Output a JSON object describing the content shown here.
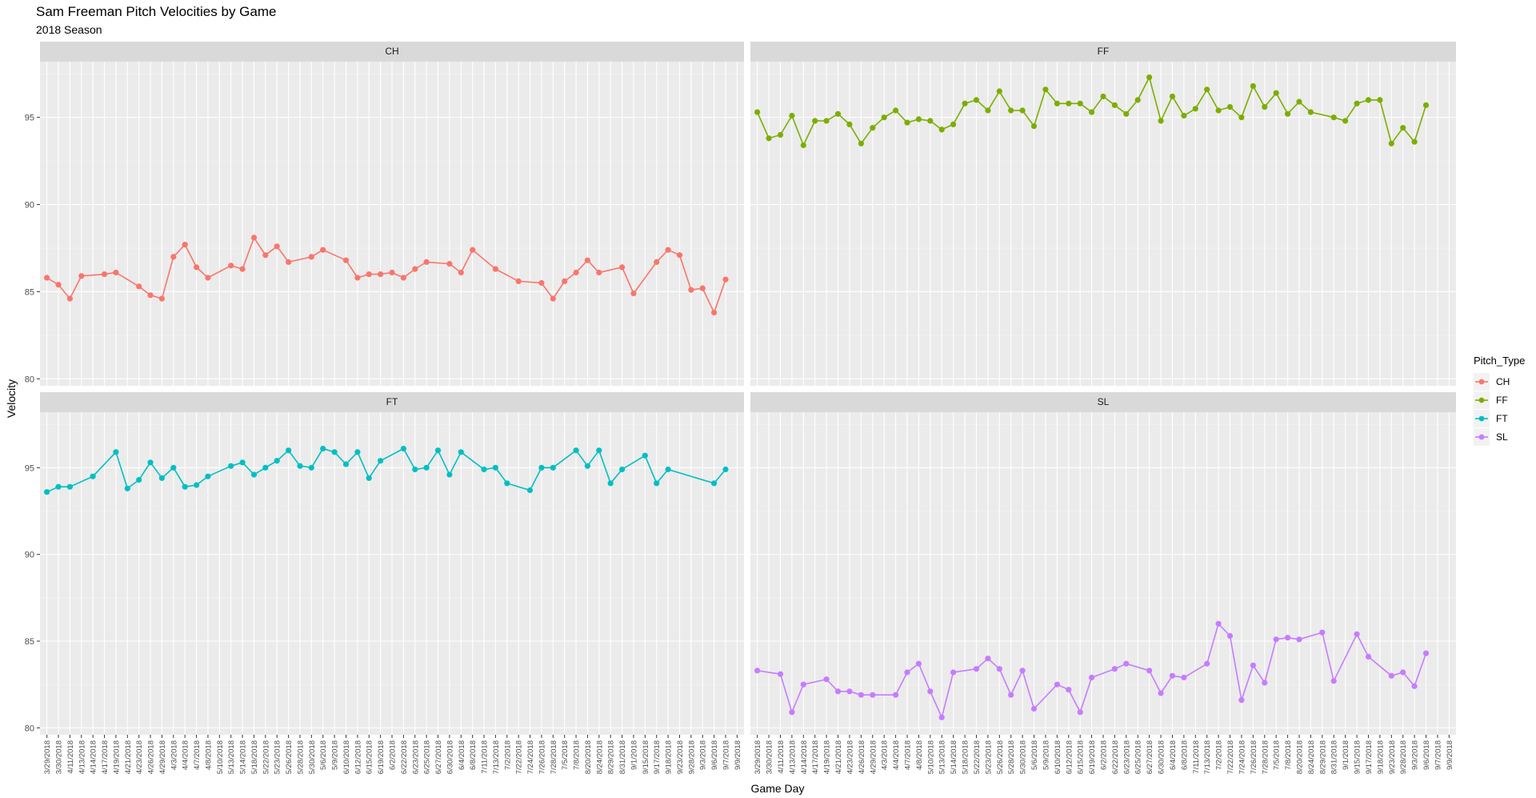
{
  "chart_data": {
    "type": "line",
    "title": "Sam Freeman Pitch Velocities by Game",
    "subtitle": "2018 Season",
    "xlabel": "Game Day",
    "ylabel": "Velocity",
    "ylim": [
      79.6,
      98.2
    ],
    "yticks": [
      80,
      85,
      90,
      95
    ],
    "grid": true,
    "legend": {
      "title": "Pitch_Type",
      "position": "right"
    },
    "x": [
      "3/29/2018",
      "3/30/2018",
      "4/11/2018",
      "4/13/2018",
      "4/14/2018",
      "4/17/2018",
      "4/19/2018",
      "4/21/2018",
      "4/23/2018",
      "4/26/2018",
      "4/29/2018",
      "4/3/2018",
      "4/4/2018",
      "4/7/2018",
      "4/8/2018",
      "5/10/2018",
      "5/13/2018",
      "5/14/2018",
      "5/18/2018",
      "5/22/2018",
      "5/23/2018",
      "5/26/2018",
      "5/28/2018",
      "5/30/2018",
      "5/6/2018",
      "5/9/2018",
      "6/10/2018",
      "6/12/2018",
      "6/15/2018",
      "6/19/2018",
      "6/2/2018",
      "6/22/2018",
      "6/23/2018",
      "6/25/2018",
      "6/27/2018",
      "6/30/2018",
      "6/4/2018",
      "6/8/2018",
      "7/11/2018",
      "7/13/2018",
      "7/2/2018",
      "7/22/2018",
      "7/24/2018",
      "7/26/2018",
      "7/28/2018",
      "7/5/2018",
      "7/8/2018",
      "8/20/2018",
      "8/24/2018",
      "8/29/2018",
      "8/31/2018",
      "9/1/2018",
      "9/15/2018",
      "9/17/2018",
      "9/18/2018",
      "9/23/2018",
      "9/28/2018",
      "9/3/2018",
      "9/6/2018",
      "9/7/2018",
      "9/9/2018"
    ],
    "series": [
      {
        "name": "CH",
        "color": "#F8766D",
        "panel": "CH",
        "values": [
          85.8,
          85.4,
          84.6,
          85.9,
          null,
          86.0,
          86.1,
          null,
          85.3,
          84.8,
          84.6,
          87.0,
          87.7,
          86.4,
          85.8,
          null,
          86.5,
          86.3,
          88.1,
          87.1,
          87.6,
          86.7,
          null,
          87.0,
          87.4,
          null,
          86.8,
          85.8,
          86.0,
          86.0,
          86.1,
          85.8,
          86.3,
          86.7,
          null,
          86.6,
          86.1,
          87.4,
          null,
          86.3,
          null,
          85.6,
          null,
          85.5,
          84.6,
          85.6,
          86.1,
          86.8,
          86.1,
          null,
          86.4,
          84.9,
          null,
          86.7,
          87.4,
          87.1,
          85.1,
          85.2,
          83.8,
          85.7,
          null
        ]
      },
      {
        "name": "FF",
        "color": "#7CAE00",
        "panel": "FF",
        "values": [
          95.3,
          93.8,
          94.0,
          95.1,
          93.4,
          94.8,
          94.8,
          95.2,
          94.6,
          93.5,
          94.4,
          95.0,
          95.4,
          94.7,
          94.9,
          94.8,
          94.3,
          94.6,
          95.8,
          96.0,
          95.4,
          96.5,
          95.4,
          95.4,
          94.5,
          96.6,
          95.8,
          95.8,
          95.8,
          95.3,
          96.2,
          95.7,
          95.2,
          96.0,
          97.3,
          94.8,
          96.2,
          95.1,
          95.5,
          96.6,
          95.4,
          95.6,
          95.0,
          96.8,
          95.6,
          96.4,
          95.2,
          95.9,
          95.3,
          null,
          95.0,
          94.8,
          95.8,
          96.0,
          96.0,
          93.5,
          94.4,
          93.6,
          95.7,
          null,
          null
        ]
      },
      {
        "name": "FT",
        "color": "#00BFC4",
        "panel": "FT",
        "values": [
          93.6,
          93.9,
          93.9,
          null,
          94.5,
          null,
          95.9,
          93.8,
          94.3,
          95.3,
          94.4,
          95.0,
          93.9,
          94.0,
          94.5,
          null,
          95.1,
          95.3,
          94.6,
          95.0,
          95.4,
          96.0,
          95.1,
          95.0,
          96.1,
          95.9,
          95.2,
          95.9,
          94.4,
          95.4,
          null,
          96.1,
          94.9,
          95.0,
          96.0,
          94.6,
          95.9,
          null,
          94.9,
          95.0,
          94.1,
          null,
          93.7,
          95.0,
          95.0,
          null,
          96.0,
          95.1,
          96.0,
          94.1,
          94.9,
          null,
          95.7,
          94.1,
          94.9,
          null,
          null,
          null,
          94.1,
          94.9,
          null
        ]
      },
      {
        "name": "SL",
        "color": "#C77CFF",
        "panel": "SL",
        "values": [
          83.3,
          null,
          83.1,
          80.9,
          82.5,
          null,
          82.8,
          82.1,
          82.1,
          81.9,
          81.9,
          null,
          81.9,
          83.2,
          83.7,
          82.1,
          80.6,
          83.2,
          null,
          83.4,
          84.0,
          83.4,
          81.9,
          83.3,
          81.1,
          null,
          82.5,
          82.2,
          80.9,
          82.9,
          null,
          83.4,
          83.7,
          null,
          83.3,
          82.0,
          83.0,
          82.9,
          null,
          83.7,
          86.0,
          85.3,
          81.6,
          83.6,
          82.6,
          85.1,
          85.2,
          85.1,
          null,
          85.5,
          82.7,
          null,
          85.4,
          84.1,
          null,
          83.0,
          83.2,
          82.4,
          84.3,
          null,
          null
        ]
      }
    ]
  }
}
